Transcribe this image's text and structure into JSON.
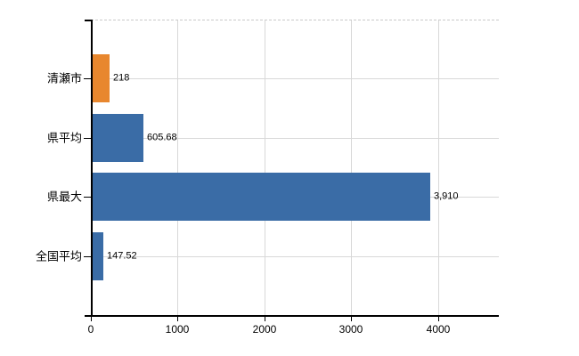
{
  "chart_data": {
    "type": "bar",
    "orientation": "horizontal",
    "categories": [
      "清瀬市",
      "県平均",
      "県最大",
      "全国平均"
    ],
    "values": [
      218,
      605.68,
      3910,
      147.52
    ],
    "value_labels": [
      "218",
      "605.68",
      "3,910",
      "147.52"
    ],
    "bar_colors": [
      "#e8872e",
      "#3a6ca6",
      "#3a6ca6",
      "#3a6ca6"
    ],
    "x_tick_values": [
      0,
      1000,
      2000,
      3000,
      4000
    ],
    "x_tick_labels": [
      "0",
      "1000",
      "2000",
      "3000",
      "4000"
    ],
    "xlim": [
      0,
      4700
    ],
    "grid": true,
    "legend_position": "none",
    "title": ""
  },
  "colors": {
    "accent_orange": "#e8872e",
    "accent_blue": "#3a6ca6",
    "gridline": "#d8d8d8",
    "plot_top_border": "#c9c9c9",
    "axis": "#000000",
    "text": "#000000",
    "background": "#ffffff"
  }
}
